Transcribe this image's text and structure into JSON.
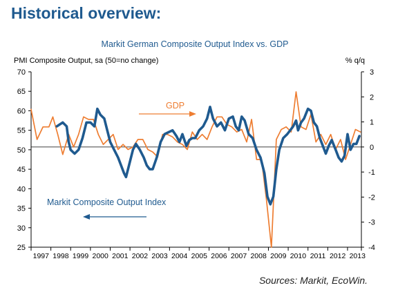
{
  "page": {
    "heading": "Historical overview:",
    "source": "Sources: Markit, EcoWin."
  },
  "chart_data": {
    "type": "line",
    "title": "Markit German Composite Output Index vs. GDP",
    "ylabel_left": "PMI Composite Output, sa (50=no change)",
    "ylabel_right": "% q/q",
    "ylim_left": [
      25,
      70
    ],
    "ylim_right": [
      -4,
      3
    ],
    "yticks_left": [
      "70",
      "65",
      "60",
      "55",
      "50",
      "45",
      "40",
      "35",
      "30",
      "25"
    ],
    "yticks_right": [
      "3",
      "2",
      "1",
      "0",
      "-1",
      "-2",
      "-3",
      "-4"
    ],
    "xlim": [
      1997,
      2013.7
    ],
    "x_tick_labels": [
      "1997",
      "1998",
      "1999",
      "2000",
      "2001",
      "2002",
      "2003",
      "2004",
      "2005",
      "2006",
      "2007",
      "2008",
      "2009",
      "2010",
      "2011",
      "2012",
      "2013"
    ],
    "grid": false,
    "series": [
      {
        "name": "Markit Composite Output Index",
        "color": "#1f5a8f",
        "axis": "left",
        "points": [
          [
            1998.3,
            56
          ],
          [
            1998.6,
            57
          ],
          [
            1998.8,
            56
          ],
          [
            1998.9,
            52
          ],
          [
            1999.0,
            50
          ],
          [
            1999.2,
            49
          ],
          [
            1999.4,
            50
          ],
          [
            1999.6,
            53
          ],
          [
            1999.8,
            57
          ],
          [
            2000.0,
            57
          ],
          [
            2000.2,
            56
          ],
          [
            2000.35,
            60.5
          ],
          [
            2000.5,
            59
          ],
          [
            2000.7,
            58
          ],
          [
            2000.85,
            55
          ],
          [
            2001.0,
            52
          ],
          [
            2001.2,
            50
          ],
          [
            2001.4,
            48
          ],
          [
            2001.55,
            46
          ],
          [
            2001.7,
            44
          ],
          [
            2001.8,
            43
          ],
          [
            2001.95,
            46
          ],
          [
            2002.15,
            50
          ],
          [
            2002.3,
            51.5
          ],
          [
            2002.5,
            50
          ],
          [
            2002.7,
            48
          ],
          [
            2002.85,
            46
          ],
          [
            2003.0,
            45
          ],
          [
            2003.15,
            45
          ],
          [
            2003.35,
            48
          ],
          [
            2003.55,
            52
          ],
          [
            2003.75,
            54
          ],
          [
            2003.95,
            54.5
          ],
          [
            2004.15,
            55
          ],
          [
            2004.35,
            53.5
          ],
          [
            2004.5,
            52
          ],
          [
            2004.65,
            54
          ],
          [
            2004.85,
            51
          ],
          [
            2005.0,
            52.5
          ],
          [
            2005.15,
            53
          ],
          [
            2005.3,
            53
          ],
          [
            2005.5,
            55
          ],
          [
            2005.7,
            56
          ],
          [
            2005.9,
            58
          ],
          [
            2006.05,
            61
          ],
          [
            2006.2,
            58
          ],
          [
            2006.4,
            56
          ],
          [
            2006.6,
            57
          ],
          [
            2006.8,
            55
          ],
          [
            2007.0,
            58
          ],
          [
            2007.2,
            58.5
          ],
          [
            2007.35,
            56
          ],
          [
            2007.5,
            55
          ],
          [
            2007.65,
            58.5
          ],
          [
            2007.8,
            57.5
          ],
          [
            2008.0,
            54
          ],
          [
            2008.2,
            53
          ],
          [
            2008.4,
            50
          ],
          [
            2008.6,
            48
          ],
          [
            2008.8,
            44
          ],
          [
            2008.95,
            38
          ],
          [
            2009.1,
            36
          ],
          [
            2009.25,
            38
          ],
          [
            2009.4,
            45
          ],
          [
            2009.55,
            50
          ],
          [
            2009.75,
            53
          ],
          [
            2009.95,
            54
          ],
          [
            2010.1,
            55
          ],
          [
            2010.25,
            56
          ],
          [
            2010.4,
            57.5
          ],
          [
            2010.5,
            55
          ],
          [
            2010.65,
            57
          ],
          [
            2010.8,
            58
          ],
          [
            2011.0,
            60.5
          ],
          [
            2011.15,
            60
          ],
          [
            2011.3,
            57
          ],
          [
            2011.45,
            56
          ],
          [
            2011.6,
            53
          ],
          [
            2011.75,
            51
          ],
          [
            2011.9,
            49
          ],
          [
            2012.05,
            51
          ],
          [
            2012.2,
            52.5
          ],
          [
            2012.4,
            50
          ],
          [
            2012.55,
            48
          ],
          [
            2012.7,
            47
          ],
          [
            2012.85,
            48.5
          ],
          [
            2013.0,
            54
          ],
          [
            2013.15,
            50
          ],
          [
            2013.3,
            51.5
          ],
          [
            2013.45,
            51.5
          ],
          [
            2013.6,
            53.5
          ]
        ]
      },
      {
        "name": "GDP",
        "color": "#ee7d31",
        "axis": "right",
        "points": [
          [
            1997.0,
            1.5
          ],
          [
            1997.3,
            0.3
          ],
          [
            1997.6,
            0.8
          ],
          [
            1997.9,
            0.8
          ],
          [
            1998.1,
            1.2
          ],
          [
            1998.35,
            0.5
          ],
          [
            1998.6,
            -0.3
          ],
          [
            1998.9,
            0.5
          ],
          [
            1999.15,
            0.0
          ],
          [
            1999.4,
            0.5
          ],
          [
            1999.65,
            1.2
          ],
          [
            1999.9,
            1.1
          ],
          [
            2000.15,
            1.1
          ],
          [
            2000.4,
            0.5
          ],
          [
            2000.65,
            0.1
          ],
          [
            2000.9,
            0.3
          ],
          [
            2001.15,
            0.5
          ],
          [
            2001.4,
            -0.1
          ],
          [
            2001.65,
            0.1
          ],
          [
            2001.9,
            -0.1
          ],
          [
            2002.15,
            0.0
          ],
          [
            2002.4,
            0.3
          ],
          [
            2002.65,
            0.3
          ],
          [
            2002.9,
            -0.1
          ],
          [
            2003.15,
            -0.2
          ],
          [
            2003.4,
            -0.4
          ],
          [
            2003.65,
            0.5
          ],
          [
            2003.9,
            0.5
          ],
          [
            2004.15,
            0.4
          ],
          [
            2004.4,
            0.2
          ],
          [
            2004.65,
            0.1
          ],
          [
            2004.9,
            -0.1
          ],
          [
            2005.15,
            0.6
          ],
          [
            2005.4,
            0.3
          ],
          [
            2005.65,
            0.5
          ],
          [
            2005.9,
            0.3
          ],
          [
            2006.15,
            0.8
          ],
          [
            2006.4,
            1.2
          ],
          [
            2006.65,
            1.2
          ],
          [
            2006.9,
            0.9
          ],
          [
            2007.15,
            0.8
          ],
          [
            2007.4,
            0.6
          ],
          [
            2007.65,
            0.7
          ],
          [
            2007.9,
            0.2
          ],
          [
            2008.15,
            1.1
          ],
          [
            2008.4,
            -0.5
          ],
          [
            2008.65,
            -0.5
          ],
          [
            2008.9,
            -2.1
          ],
          [
            2009.15,
            -4.0
          ],
          [
            2009.4,
            0.3
          ],
          [
            2009.65,
            0.7
          ],
          [
            2009.9,
            0.8
          ],
          [
            2010.15,
            0.6
          ],
          [
            2010.4,
            2.2
          ],
          [
            2010.65,
            0.8
          ],
          [
            2010.9,
            0.7
          ],
          [
            2011.15,
            1.3
          ],
          [
            2011.4,
            0.2
          ],
          [
            2011.65,
            0.5
          ],
          [
            2011.9,
            0.1
          ],
          [
            2012.15,
            0.5
          ],
          [
            2012.4,
            -0.1
          ],
          [
            2012.65,
            0.3
          ],
          [
            2012.9,
            -0.5
          ],
          [
            2013.15,
            0.1
          ],
          [
            2013.4,
            0.7
          ],
          [
            2013.65,
            0.6
          ]
        ]
      }
    ],
    "annotations": [
      {
        "text": "GDP",
        "color": "#ee7d31",
        "arrow": "right"
      },
      {
        "text": "Markit Composite Output Index",
        "color": "#1f5a8f",
        "arrow": "left"
      }
    ]
  }
}
